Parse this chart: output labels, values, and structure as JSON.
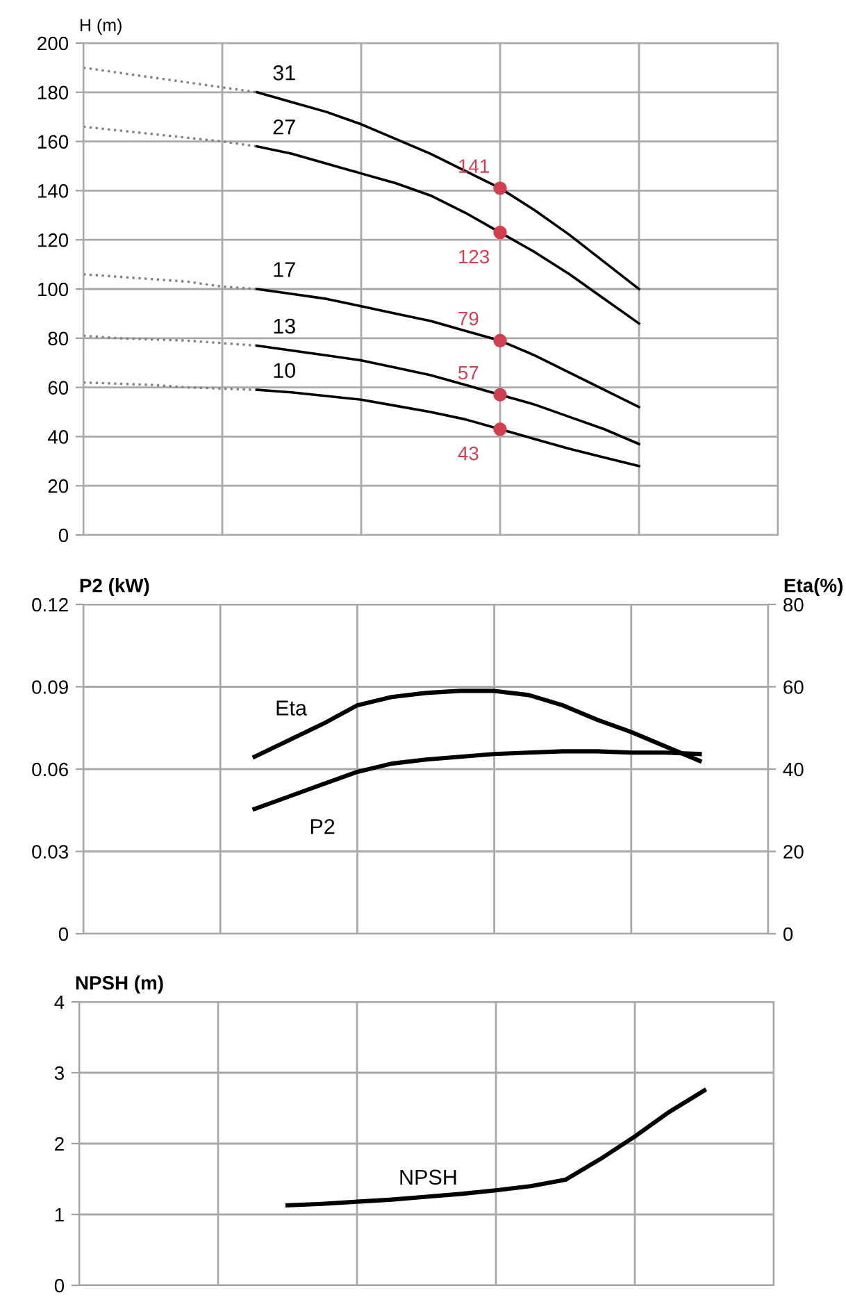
{
  "chart_data": [
    {
      "type": "line",
      "ylabel": "H (m)",
      "categories": [
        null,
        null,
        null,
        null,
        null,
        null,
        null,
        null,
        null,
        null,
        null,
        null,
        null,
        null,
        null,
        null,
        null,
        null,
        null,
        null,
        null
      ],
      "ylim": [
        0,
        200
      ],
      "yticks": [
        0,
        20,
        40,
        60,
        80,
        100,
        120,
        140,
        160,
        180,
        200
      ],
      "tick_labels": "y",
      "grid": true,
      "series": [
        {
          "color": "#808080",
          "line_style": "dotted",
          "values": [
            190,
            188,
            186,
            184,
            182,
            180,
            null,
            null,
            null,
            null,
            null,
            null,
            null,
            null,
            null,
            null,
            null,
            null,
            null,
            null,
            null
          ]
        },
        {
          "color": "#808080",
          "line_style": "dotted",
          "values": [
            166,
            164.5,
            163,
            161.5,
            160,
            158,
            null,
            null,
            null,
            null,
            null,
            null,
            null,
            null,
            null,
            null,
            null,
            null,
            null,
            null,
            null
          ]
        },
        {
          "color": "#808080",
          "line_style": "dotted",
          "values": [
            106,
            105,
            104,
            103,
            101,
            100,
            null,
            null,
            null,
            null,
            null,
            null,
            null,
            null,
            null,
            null,
            null,
            null,
            null,
            null,
            null
          ]
        },
        {
          "color": "#808080",
          "line_style": "dotted",
          "values": [
            81,
            80,
            79.5,
            79,
            78,
            77,
            null,
            null,
            null,
            null,
            null,
            null,
            null,
            null,
            null,
            null,
            null,
            null,
            null,
            null,
            null
          ]
        },
        {
          "color": "#808080",
          "line_style": "dotted",
          "values": [
            62,
            61.5,
            61,
            60,
            59.5,
            59,
            null,
            null,
            null,
            null,
            null,
            null,
            null,
            null,
            null,
            null,
            null,
            null,
            null,
            null,
            null
          ]
        },
        {
          "name": "31",
          "color": "#000000",
          "values": [
            null,
            null,
            null,
            null,
            null,
            180,
            176,
            172,
            167,
            161,
            155,
            148,
            141,
            132,
            122,
            111,
            100,
            null,
            null,
            null,
            null
          ]
        },
        {
          "name": "27",
          "color": "#000000",
          "values": [
            null,
            null,
            null,
            null,
            null,
            158,
            155,
            151,
            147,
            143,
            138,
            131,
            123,
            115,
            106,
            96,
            86,
            null,
            null,
            null,
            null
          ]
        },
        {
          "name": "17",
          "color": "#000000",
          "values": [
            null,
            null,
            null,
            null,
            null,
            100,
            98,
            96,
            93,
            90,
            87,
            83,
            79,
            73,
            66,
            59,
            52,
            null,
            null,
            null,
            null
          ]
        },
        {
          "name": "13",
          "color": "#000000",
          "values": [
            null,
            null,
            null,
            null,
            null,
            77,
            75,
            73,
            71,
            68,
            65,
            61,
            57,
            53,
            48,
            43,
            37,
            null,
            null,
            null,
            null
          ]
        },
        {
          "name": "10",
          "color": "#000000",
          "values": [
            null,
            null,
            null,
            null,
            null,
            59,
            58,
            56.5,
            55,
            52.5,
            50,
            47,
            43,
            39,
            35,
            31.5,
            28,
            null,
            null,
            null,
            null
          ]
        },
        {
          "type": "scatter",
          "marker": "circle",
          "color": "#d04050",
          "values": [
            null,
            null,
            null,
            null,
            null,
            null,
            null,
            null,
            null,
            null,
            null,
            null,
            141,
            null,
            null,
            null,
            null,
            null,
            null,
            null,
            null
          ],
          "value_labels": [
            null,
            null,
            null,
            null,
            null,
            null,
            null,
            null,
            null,
            null,
            null,
            null,
            "141",
            null,
            null,
            null,
            null,
            null,
            null,
            null,
            null
          ]
        },
        {
          "type": "scatter",
          "marker": "circle",
          "color": "#d04050",
          "values": [
            null,
            null,
            null,
            null,
            null,
            null,
            null,
            null,
            null,
            null,
            null,
            null,
            123,
            null,
            null,
            null,
            null,
            null,
            null,
            null,
            null
          ],
          "value_labels": [
            null,
            null,
            null,
            null,
            null,
            null,
            null,
            null,
            null,
            null,
            null,
            null,
            "123",
            null,
            null,
            null,
            null,
            null,
            null,
            null,
            null
          ]
        },
        {
          "type": "scatter",
          "marker": "circle",
          "color": "#d04050",
          "values": [
            null,
            null,
            null,
            null,
            null,
            null,
            null,
            null,
            null,
            null,
            null,
            null,
            79,
            null,
            null,
            null,
            null,
            null,
            null,
            null,
            null
          ],
          "value_labels": [
            null,
            null,
            null,
            null,
            null,
            null,
            null,
            null,
            null,
            null,
            null,
            null,
            "79",
            null,
            null,
            null,
            null,
            null,
            null,
            null,
            null
          ]
        },
        {
          "type": "scatter",
          "marker": "circle",
          "color": "#d04050",
          "values": [
            null,
            null,
            null,
            null,
            null,
            null,
            null,
            null,
            null,
            null,
            null,
            null,
            57,
            null,
            null,
            null,
            null,
            null,
            null,
            null,
            null
          ],
          "value_labels": [
            null,
            null,
            null,
            null,
            null,
            null,
            null,
            null,
            null,
            null,
            null,
            null,
            "57",
            null,
            null,
            null,
            null,
            null,
            null,
            null,
            null
          ]
        },
        {
          "type": "scatter",
          "marker": "circle",
          "color": "#d04050",
          "values": [
            null,
            null,
            null,
            null,
            null,
            null,
            null,
            null,
            null,
            null,
            null,
            null,
            43,
            null,
            null,
            null,
            null,
            null,
            null,
            null,
            null
          ],
          "value_labels": [
            null,
            null,
            null,
            null,
            null,
            null,
            null,
            null,
            null,
            null,
            null,
            null,
            "43",
            null,
            null,
            null,
            null,
            null,
            null,
            null,
            null
          ]
        }
      ]
    },
    {
      "type": "line",
      "ylabel": "P2 (kW)",
      "y2label": "Eta(%)",
      "categories": [
        null,
        null,
        null,
        null,
        null,
        null,
        null,
        null,
        null,
        null,
        null,
        null,
        null,
        null,
        null,
        null,
        null,
        null,
        null,
        null,
        null
      ],
      "ylim": [
        0,
        0.12
      ],
      "yticks": [
        {
          "value": 0,
          "label": "0"
        },
        {
          "value": 0.03,
          "label": "0.03"
        },
        {
          "value": 0.06,
          "label": "0.06"
        },
        {
          "value": 0.09,
          "label": "0.09"
        },
        {
          "value": 0.12,
          "label": "0.12"
        }
      ],
      "y2lim": [
        0,
        80
      ],
      "y2ticks": [
        0,
        20,
        40,
        60,
        80
      ],
      "tick_labels": "y",
      "grid": true,
      "series": [
        {
          "name": "Eta",
          "axis": "y2",
          "color": "#000000",
          "values": [
            null,
            null,
            null,
            null,
            null,
            43,
            47,
            51,
            55.5,
            57.5,
            58.5,
            59,
            59,
            58,
            55.5,
            52,
            49,
            45.5,
            42,
            null,
            null
          ]
        },
        {
          "name": "P2",
          "color": "#000000",
          "values": [
            null,
            null,
            null,
            null,
            null,
            0.0455,
            0.05,
            0.0545,
            0.059,
            0.062,
            0.0635,
            0.0645,
            0.0655,
            0.066,
            0.0665,
            0.0665,
            0.066,
            0.066,
            0.0655,
            null,
            null
          ]
        }
      ]
    },
    {
      "type": "line",
      "ylabel": "NPSH (m)",
      "categories": [
        null,
        null,
        null,
        null,
        null,
        null,
        null,
        null,
        null,
        null,
        null,
        null,
        null,
        null,
        null,
        null,
        null,
        null,
        null,
        null,
        null
      ],
      "ylim": [
        0,
        4
      ],
      "yticks": [
        0,
        1,
        2,
        3,
        4
      ],
      "tick_labels": "y",
      "grid": true,
      "series": [
        {
          "name": "NPSH",
          "color": "#000000",
          "values": [
            null,
            null,
            null,
            null,
            null,
            null,
            1.13,
            1.15,
            1.18,
            1.21,
            1.25,
            1.29,
            1.34,
            1.4,
            1.49,
            1.78,
            2.1,
            2.45,
            2.75,
            null,
            null
          ]
        }
      ]
    }
  ]
}
